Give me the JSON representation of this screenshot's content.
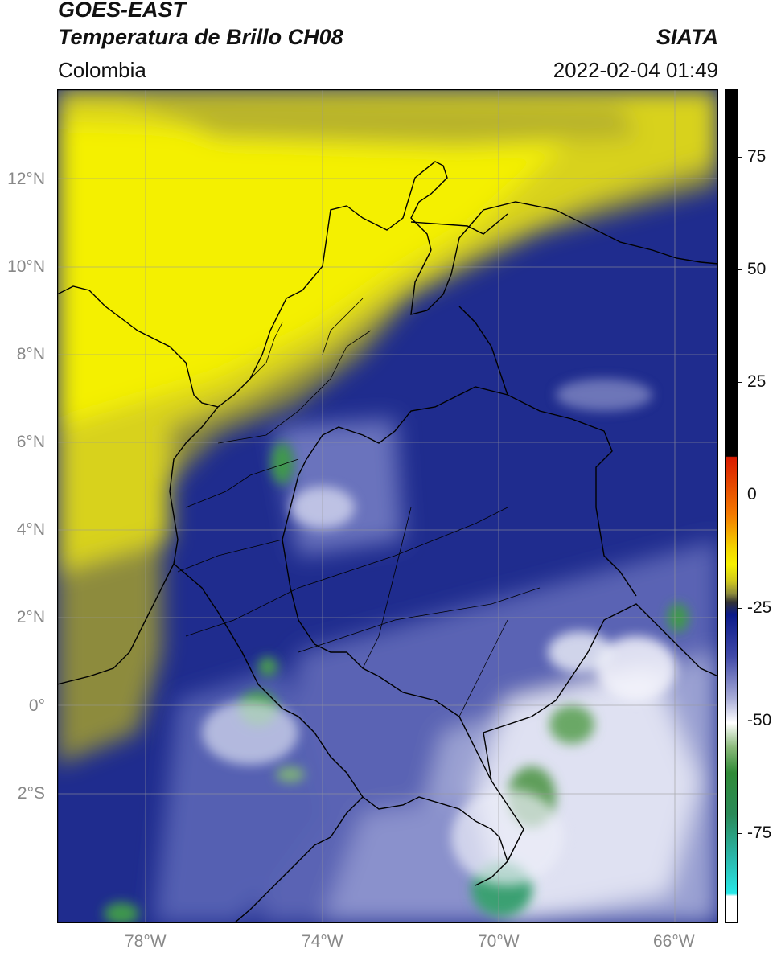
{
  "header": {
    "satellite": "GOES-EAST",
    "product": "Temperatura de Brillo CH08",
    "agency": "SIATA",
    "region": "Colombia",
    "datetime": "2022-02-04 01:49"
  },
  "map": {
    "lat_labels": [
      "12°N",
      "10°N",
      "8°N",
      "6°N",
      "4°N",
      "2°N",
      "0°",
      "2°S"
    ],
    "lon_labels": [
      "78°W",
      "74°W",
      "70°W",
      "66°W"
    ],
    "gridlines": true,
    "color_fields": {
      "ocean_north": "#f2f000",
      "caribbean_dark": "#c9c418",
      "olive": "#8c8c3a",
      "navy": "#1c2a8c",
      "blue": "#3c4aa6",
      "lavender": "#8f96cc",
      "white": "#f4f4fb",
      "green": "#3a8f4a",
      "teal": "#3aa080"
    }
  },
  "colorbar": {
    "ticks": [
      "75",
      "50",
      "25",
      "0",
      "-25",
      "-50",
      "-75"
    ],
    "tick_values": [
      75,
      50,
      25,
      0,
      -25,
      -50,
      -75
    ],
    "range": [
      -95,
      90
    ]
  }
}
